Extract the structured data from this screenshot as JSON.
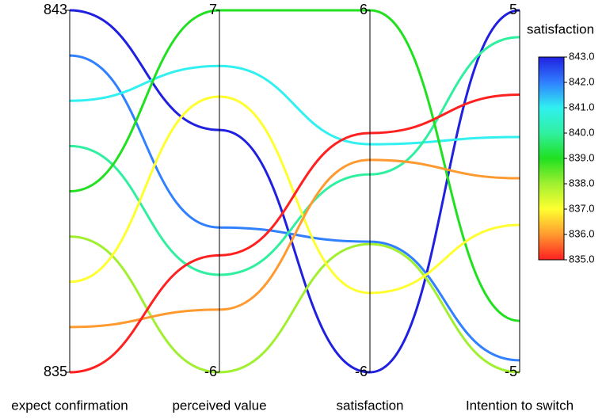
{
  "chart_data": {
    "type": "parallel",
    "dimensions": [
      {
        "label": "expect confirmation",
        "lim": [
          835,
          843
        ],
        "ticks": [
          835,
          843
        ]
      },
      {
        "label": "perceived value",
        "lim": [
          -6,
          7
        ],
        "ticks": [
          -6,
          7
        ]
      },
      {
        "label": "satisfaction",
        "lim": [
          -6,
          6
        ],
        "ticks": [
          -6,
          6
        ]
      },
      {
        "label": "Intention to switch",
        "lim": [
          -5,
          5
        ],
        "ticks": [
          -5,
          5
        ]
      }
    ],
    "lines": [
      [
        843,
        2.7,
        -6,
        5
      ],
      [
        842,
        -0.8,
        -1.67,
        -4.67
      ],
      [
        841,
        5,
        1.56,
        1.5
      ],
      [
        840,
        -2.5,
        0.56,
        4.26
      ],
      [
        839,
        7,
        6,
        -3.58
      ],
      [
        838,
        -6,
        -1.75,
        -5
      ],
      [
        837,
        3.9,
        -3.37,
        -0.93
      ],
      [
        836,
        -3.75,
        1.04,
        0.36
      ],
      [
        835,
        -1.8,
        1.93,
        2.67
      ]
    ],
    "colorbar": {
      "title": "satisfaction",
      "lim": [
        835,
        843
      ],
      "colors": [
        "#ff2020",
        "#ff9a30",
        "#ffff30",
        "#a0f030",
        "#20e020",
        "#30f0a0",
        "#30f0f0",
        "#3080ff",
        "#2020e0"
      ],
      "ticks": [
        {
          "value": 835,
          "label": "835.0"
        },
        {
          "value": 836,
          "label": "836.0"
        },
        {
          "value": 837,
          "label": "837.0"
        },
        {
          "value": 838,
          "label": "838.0"
        },
        {
          "value": 839,
          "label": "839.0"
        },
        {
          "value": 840,
          "label": "840.0"
        },
        {
          "value": 841,
          "label": "841.0"
        },
        {
          "value": 842,
          "label": "842.0"
        },
        {
          "value": 843,
          "label": "843.0"
        }
      ]
    }
  }
}
